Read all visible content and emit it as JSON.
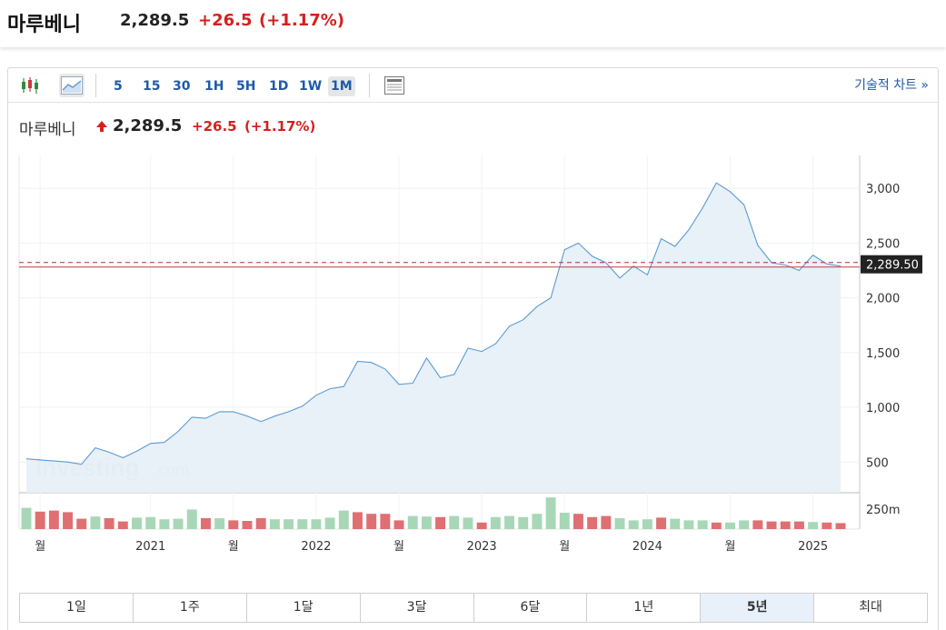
{
  "header": {
    "name": "마루베니",
    "price": "2,289.5",
    "change": "+26.5",
    "change_pct": "(+1.17%)"
  },
  "toolbar": {
    "chart_type_icons": [
      "candlestick-icon",
      "area-chart-icon"
    ],
    "timeframes": [
      "5",
      "15",
      "30",
      "1H",
      "5H",
      "1D",
      "1W",
      "1M"
    ],
    "active_timeframe": "1M",
    "technical_link": "기술적 차트 »"
  },
  "legend": {
    "name": "마루베니",
    "price": "2,289.5",
    "change": "+26.5",
    "change_pct": "(+1.17%)"
  },
  "watermark": {
    "brand": "Investing",
    "suffix": ".com"
  },
  "ranges": {
    "items": [
      "1일",
      "1주",
      "1달",
      "3달",
      "6달",
      "1년",
      "5년",
      "최대"
    ],
    "active": "5년"
  },
  "colors": {
    "line": "#5b9bd5",
    "area": "#e6eef7",
    "up_volume": "#a7d7b7",
    "down_volume": "#e06f72",
    "price_line": "#c43c3c",
    "up_text": "#d61f1f",
    "link": "#1e5aa8"
  },
  "chart_data": {
    "type": "area",
    "y_ticks": [
      500,
      1000,
      1500,
      2000,
      2500,
      3000
    ],
    "y_tick_labels": [
      "500",
      "1,000",
      "1,500",
      "2,000",
      "2,500",
      "3,000"
    ],
    "ylim": [
      220,
      3300
    ],
    "last_price_label": "2,289.50",
    "last_price": 2289.5,
    "x_labels": [
      {
        "label": "월",
        "index": 1
      },
      {
        "label": "2021",
        "index": 9
      },
      {
        "label": "월",
        "index": 15
      },
      {
        "label": "2022",
        "index": 21
      },
      {
        "label": "월",
        "index": 27
      },
      {
        "label": "2023",
        "index": 33
      },
      {
        "label": "월",
        "index": 39
      },
      {
        "label": "2024",
        "index": 45
      },
      {
        "label": "월",
        "index": 51
      },
      {
        "label": "2025",
        "index": 57
      }
    ],
    "values": [
      530,
      520,
      510,
      500,
      480,
      630,
      590,
      540,
      600,
      670,
      680,
      780,
      910,
      900,
      960,
      960,
      920,
      870,
      920,
      960,
      1010,
      1110,
      1170,
      1190,
      1420,
      1410,
      1350,
      1210,
      1220,
      1450,
      1270,
      1300,
      1540,
      1510,
      1580,
      1740,
      1800,
      1920,
      2000,
      2440,
      2500,
      2380,
      2320,
      2180,
      2290,
      2210,
      2540,
      2470,
      2620,
      2820,
      3050,
      2970,
      2850,
      2480,
      2320,
      2300,
      2250,
      2390,
      2310,
      2289.5
    ],
    "volume_label": "250m",
    "volume_ref": 250,
    "volume": [
      195,
      160,
      170,
      155,
      95,
      115,
      100,
      70,
      105,
      110,
      90,
      95,
      180,
      100,
      100,
      80,
      75,
      100,
      90,
      90,
      90,
      90,
      105,
      170,
      155,
      140,
      140,
      80,
      120,
      115,
      110,
      120,
      105,
      60,
      110,
      120,
      110,
      140,
      290,
      150,
      140,
      110,
      120,
      100,
      80,
      90,
      105,
      95,
      80,
      80,
      60,
      60,
      80,
      80,
      70,
      70,
      70,
      65,
      60,
      55
    ],
    "volume_dir": [
      "u",
      "d",
      "d",
      "d",
      "d",
      "u",
      "d",
      "d",
      "u",
      "u",
      "u",
      "u",
      "u",
      "d",
      "u",
      "d",
      "d",
      "d",
      "u",
      "u",
      "u",
      "u",
      "u",
      "u",
      "d",
      "d",
      "d",
      "d",
      "u",
      "u",
      "d",
      "u",
      "u",
      "d",
      "u",
      "u",
      "u",
      "u",
      "u",
      "u",
      "d",
      "d",
      "d",
      "u",
      "u",
      "u",
      "d",
      "u",
      "u",
      "u",
      "d",
      "u",
      "u",
      "d",
      "d",
      "d",
      "d",
      "u",
      "d",
      "d"
    ]
  }
}
